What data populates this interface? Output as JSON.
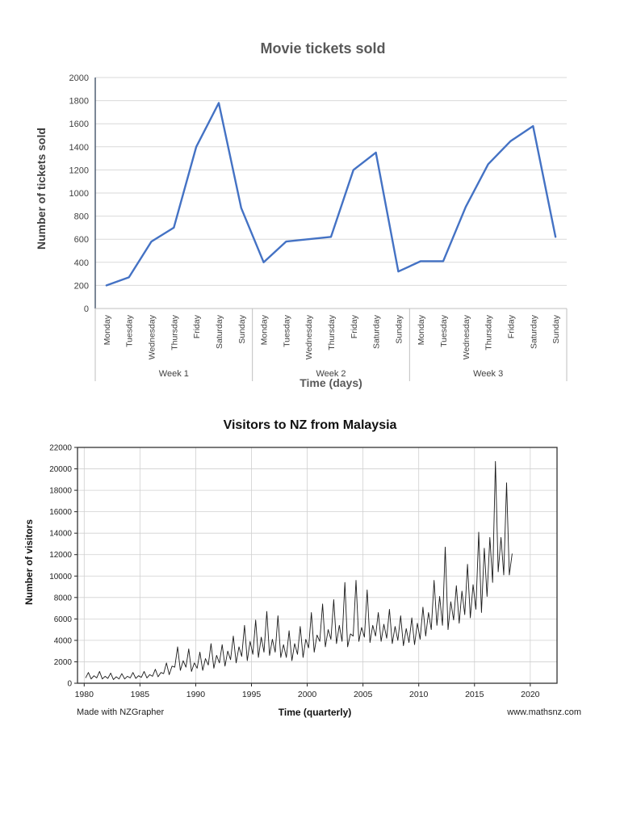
{
  "page": {
    "background": "#ffffff"
  },
  "chart_data": [
    {
      "type": "line",
      "title": "Movie tickets sold",
      "xlabel": "Time (days)",
      "ylabel": "Number of tickets sold",
      "ylim": [
        0,
        2000
      ],
      "ytick_step": 200,
      "line_color": "#4472c4",
      "grid": "horizontal",
      "weeks": [
        "Week 1",
        "Week 2",
        "Week 3"
      ],
      "days": [
        "Monday",
        "Tuesday",
        "Wednesday",
        "Thursday",
        "Friday",
        "Saturday",
        "Sunday"
      ],
      "values": [
        200,
        270,
        580,
        700,
        1400,
        1780,
        870,
        400,
        580,
        600,
        620,
        1200,
        1350,
        320,
        410,
        410,
        880,
        1250,
        1450,
        1580,
        620
      ]
    },
    {
      "type": "line",
      "title": "Visitors to NZ from Malaysia",
      "xlabel": "Time (quarterly)",
      "ylabel": "Number of visitors",
      "footer_left": "Made with NZGrapher",
      "footer_right": "www.mathsnz.com",
      "ylim": [
        0,
        22000
      ],
      "ytick_step": 2000,
      "xlim": [
        1979.4,
        2022.4
      ],
      "xticks": [
        1980,
        1985,
        1990,
        1995,
        2000,
        2005,
        2010,
        2015,
        2020
      ],
      "start_year": 1980,
      "period": 0.25,
      "line_color": "#1a1a1a",
      "grid": "both",
      "values": [
        500,
        1000,
        400,
        700,
        500,
        1100,
        400,
        650,
        450,
        950,
        350,
        600,
        400,
        900,
        400,
        650,
        500,
        1000,
        450,
        700,
        550,
        1100,
        500,
        800,
        650,
        1300,
        600,
        1000,
        900,
        1900,
        800,
        1600,
        1500,
        3400,
        1200,
        2100,
        1500,
        3200,
        1100,
        1900,
        1400,
        2900,
        1200,
        2300,
        1700,
        3700,
        1400,
        2600,
        1900,
        3600,
        1600,
        3000,
        2200,
        4400,
        1900,
        3400,
        2500,
        5400,
        2100,
        3900,
        2700,
        5900,
        2400,
        4300,
        2900,
        6700,
        2600,
        4100,
        2900,
        6300,
        2400,
        3600,
        2400,
        4900,
        2100,
        3700,
        2700,
        5300,
        2400,
        4100,
        3300,
        6600,
        2900,
        4500,
        3900,
        7400,
        3400,
        5000,
        4100,
        7800,
        3700,
        5400,
        3900,
        9400,
        3400,
        4600,
        4400,
        9600,
        3900,
        5200,
        4300,
        8700,
        3800,
        5400,
        4400,
        6600,
        3900,
        5500,
        4200,
        6900,
        3700,
        5300,
        4000,
        6300,
        3500,
        5100,
        3800,
        6100,
        3600,
        5600,
        4100,
        7100,
        4400,
        6600,
        5000,
        9600,
        5400,
        8100,
        5400,
        12700,
        5000,
        7600,
        5900,
        9100,
        5600,
        8600,
        6400,
        11100,
        6100,
        9200,
        6900,
        14100,
        6600,
        12600,
        8100,
        13600,
        9400,
        20700,
        10400,
        13600,
        10100,
        18700,
        10100,
        12100
      ]
    }
  ]
}
